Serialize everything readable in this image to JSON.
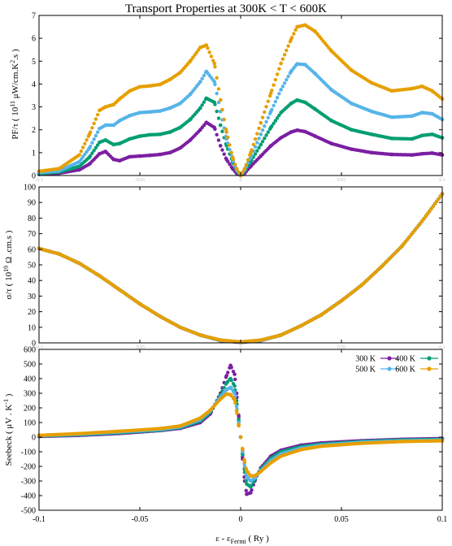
{
  "figure": {
    "title": "Transport Properties at  300K < T < 600K",
    "x_label": "ε - εFermi ( Ry )"
  },
  "chart_data": [
    {
      "type": "scatter",
      "ylabel": "PF/τ ( 10^11 μW/cm.K^2.s )",
      "xlim": [
        -0.1,
        0.1
      ],
      "ylim": [
        0,
        7
      ],
      "y_ticks": [
        "0",
        "1",
        "2",
        "3",
        "4",
        "5",
        "6",
        "7"
      ],
      "x_ticks_faint": [
        "-0.1",
        "-0.05",
        "0",
        "0.05",
        "0.1"
      ],
      "x": [
        -0.1,
        -0.09,
        -0.08,
        -0.075,
        -0.07,
        -0.067,
        -0.063,
        -0.06,
        -0.055,
        -0.05,
        -0.045,
        -0.04,
        -0.035,
        -0.03,
        -0.025,
        -0.02,
        -0.017,
        -0.013,
        -0.01,
        -0.007,
        -0.004,
        -0.002,
        0,
        0.002,
        0.005,
        0.01,
        0.015,
        0.02,
        0.025,
        0.028,
        0.032,
        0.037,
        0.045,
        0.055,
        0.065,
        0.075,
        0.085,
        0.09,
        0.095,
        0.1
      ],
      "series": [
        {
          "name": "300 K",
          "color": "#7B1FA2",
          "values": [
            0.05,
            0.1,
            0.25,
            0.5,
            0.95,
            1.05,
            0.7,
            0.65,
            0.82,
            0.85,
            0.88,
            0.92,
            1.0,
            1.2,
            1.55,
            2.0,
            2.32,
            2.1,
            1.3,
            0.7,
            0.3,
            0.1,
            0.0,
            0.1,
            0.4,
            0.85,
            1.3,
            1.65,
            1.9,
            1.98,
            1.92,
            1.72,
            1.4,
            1.15,
            1.0,
            0.92,
            0.9,
            0.95,
            0.98,
            0.9
          ]
        },
        {
          "name": "400 K",
          "color": "#009E73",
          "values": [
            0.08,
            0.15,
            0.4,
            0.8,
            1.45,
            1.55,
            1.35,
            1.4,
            1.6,
            1.72,
            1.78,
            1.8,
            1.9,
            2.1,
            2.45,
            2.95,
            3.38,
            3.2,
            2.2,
            1.3,
            0.6,
            0.2,
            0.0,
            0.2,
            0.6,
            1.35,
            2.1,
            2.75,
            3.15,
            3.3,
            3.2,
            2.9,
            2.4,
            2.0,
            1.8,
            1.62,
            1.6,
            1.75,
            1.8,
            1.65
          ]
        },
        {
          "name": "500 K",
          "color": "#56B4E9",
          "values": [
            0.12,
            0.2,
            0.6,
            1.2,
            2.05,
            2.2,
            2.2,
            2.4,
            2.62,
            2.75,
            2.78,
            2.82,
            2.95,
            3.15,
            3.55,
            4.1,
            4.55,
            4.1,
            2.8,
            1.6,
            0.7,
            0.25,
            0.0,
            0.25,
            0.8,
            1.8,
            2.8,
            3.75,
            4.55,
            4.88,
            4.85,
            4.45,
            3.75,
            3.15,
            2.8,
            2.55,
            2.6,
            2.75,
            2.7,
            2.45
          ]
        },
        {
          "name": "600 K",
          "color": "#E69F00",
          "values": [
            0.18,
            0.3,
            0.9,
            1.8,
            2.85,
            3.0,
            3.1,
            3.35,
            3.7,
            3.88,
            3.92,
            3.98,
            4.2,
            4.5,
            5.0,
            5.6,
            5.7,
            4.9,
            3.3,
            1.9,
            0.8,
            0.3,
            0.0,
            0.3,
            1.0,
            2.3,
            3.6,
            4.9,
            5.95,
            6.5,
            6.58,
            6.3,
            5.45,
            4.6,
            4.05,
            3.7,
            3.8,
            3.9,
            3.7,
            3.35
          ]
        }
      ]
    },
    {
      "type": "scatter",
      "ylabel": "σ/τ ( 10^19 Ω.cm.s )",
      "xlim": [
        -0.1,
        0.1
      ],
      "ylim": [
        0,
        100
      ],
      "y_ticks": [
        "0",
        "10",
        "20",
        "30",
        "40",
        "50",
        "60",
        "70",
        "80",
        "90",
        "100"
      ],
      "x_ticks_faint": [
        "-0.1",
        "-0.05",
        "0",
        "0.05",
        "0.1"
      ],
      "x": [
        -0.1,
        -0.09,
        -0.08,
        -0.07,
        -0.06,
        -0.05,
        -0.04,
        -0.03,
        -0.02,
        -0.01,
        0,
        0.01,
        0.02,
        0.03,
        0.04,
        0.05,
        0.06,
        0.07,
        0.08,
        0.09,
        0.1
      ],
      "series": [
        {
          "name": "300 K",
          "color": "#7B1FA2",
          "values": [
            60.5,
            57,
            51,
            43,
            34,
            25,
            17,
            10,
            5,
            1.5,
            0.3,
            1.5,
            5,
            11,
            18,
            27,
            37,
            49,
            62,
            78,
            95.5
          ]
        },
        {
          "name": "400 K",
          "color": "#009E73",
          "values": [
            60.5,
            57,
            51,
            43,
            34,
            25,
            17,
            10,
            5,
            1.6,
            0.4,
            1.6,
            5,
            11,
            18,
            27,
            37,
            49,
            62,
            78,
            95.5
          ]
        },
        {
          "name": "500 K",
          "color": "#56B4E9",
          "values": [
            60.5,
            57,
            51,
            43,
            34,
            25,
            17,
            10,
            5,
            1.7,
            0.5,
            1.7,
            5,
            11,
            18,
            27,
            37,
            49,
            62,
            78,
            95.5
          ]
        },
        {
          "name": "600 K",
          "color": "#E69F00",
          "values": [
            60.5,
            57,
            51,
            43,
            34,
            25,
            17,
            10,
            5,
            1.8,
            0.6,
            1.8,
            5,
            11,
            18,
            27,
            37,
            49,
            62,
            78,
            95.5
          ]
        }
      ]
    },
    {
      "type": "scatter",
      "ylabel": "Seebeck ( μV . K^-1 )",
      "xlim": [
        -0.1,
        0.1
      ],
      "ylim": [
        -500,
        600
      ],
      "y_ticks": [
        "-500",
        "-400",
        "-300",
        "-200",
        "-100",
        "0",
        "100",
        "200",
        "300",
        "400",
        "500",
        "600"
      ],
      "x_ticks": [
        "-0.1",
        "-0.05",
        "0",
        "0.05",
        "0.1"
      ],
      "legend": "top-right",
      "x": [
        -0.1,
        -0.08,
        -0.06,
        -0.04,
        -0.03,
        -0.02,
        -0.015,
        -0.01,
        -0.007,
        -0.005,
        -0.003,
        -0.002,
        -0.001,
        0,
        0.001,
        0.002,
        0.003,
        0.005,
        0.007,
        0.01,
        0.015,
        0.02,
        0.03,
        0.04,
        0.06,
        0.08,
        0.1
      ],
      "series": [
        {
          "name": "300 K",
          "color": "#7B1FA2",
          "values": [
            5,
            12,
            25,
            45,
            60,
            100,
            160,
            300,
            420,
            490,
            430,
            300,
            150,
            0,
            -150,
            -300,
            -390,
            -380,
            -300,
            -210,
            -130,
            -90,
            -55,
            -40,
            -25,
            -15,
            -10
          ]
        },
        {
          "name": "400 K",
          "color": "#009E73",
          "values": [
            8,
            16,
            30,
            48,
            65,
            110,
            170,
            290,
            370,
            400,
            350,
            250,
            120,
            0,
            -120,
            -240,
            -320,
            -340,
            -290,
            -220,
            -145,
            -100,
            -65,
            -48,
            -30,
            -20,
            -15
          ]
        },
        {
          "name": "500 K",
          "color": "#56B4E9",
          "values": [
            10,
            20,
            35,
            52,
            70,
            120,
            180,
            275,
            325,
            340,
            300,
            210,
            100,
            0,
            -100,
            -200,
            -270,
            -300,
            -280,
            -230,
            -160,
            -115,
            -75,
            -55,
            -35,
            -25,
            -20
          ]
        },
        {
          "name": "600 K",
          "color": "#E69F00",
          "values": [
            12,
            24,
            40,
            58,
            76,
            130,
            185,
            260,
            295,
            290,
            255,
            180,
            85,
            0,
            -85,
            -170,
            -230,
            -265,
            -265,
            -235,
            -175,
            -130,
            -85,
            -62,
            -42,
            -30,
            -25
          ]
        }
      ]
    }
  ]
}
